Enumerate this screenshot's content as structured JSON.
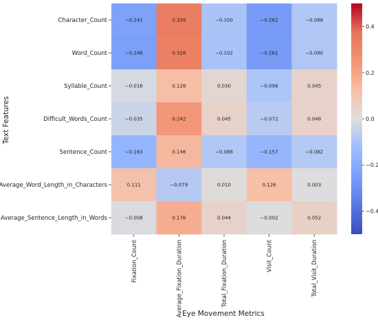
{
  "chart_data": {
    "type": "heatmap",
    "xlabel": "Eye Movement Metrics",
    "ylabel": "Text Features",
    "columns": [
      "Fixation_Count",
      "Average_Fixation_Duration",
      "Total_Fixation_Duration",
      "Visit_Count",
      "Total_Visit_Duration"
    ],
    "rows": [
      "Character_Count",
      "Word_Count",
      "Syllable_Count",
      "Difficult_Words_Count",
      "Sentence_Count",
      "Average_Word_Length_in_Characters",
      "Average_Sentence_Length_in_Words"
    ],
    "values": [
      [
        -0.241,
        0.339,
        -0.1,
        -0.262,
        -0.088
      ],
      [
        -0.246,
        0.328,
        -0.102,
        -0.261,
        -0.09
      ],
      [
        -0.016,
        0.128,
        0.03,
        -0.098,
        0.045
      ],
      [
        -0.035,
        0.242,
        0.045,
        -0.072,
        0.048
      ],
      [
        -0.163,
        0.146,
        -0.088,
        -0.157,
        -0.082
      ],
      [
        0.111,
        -0.079,
        0.01,
        0.126,
        0.003
      ],
      [
        -0.008,
        0.176,
        0.044,
        -0.002,
        0.052
      ]
    ],
    "cell_labels": [
      [
        "−0.241",
        "0.339",
        "−0.100",
        "−0.262",
        "−0.088"
      ],
      [
        "−0.246",
        "0.328",
        "−0.102",
        "−0.261",
        "−0.090"
      ],
      [
        "−0.016",
        "0.128",
        "0.030",
        "−0.098",
        "0.045"
      ],
      [
        "−0.035",
        "0.242",
        "0.045",
        "−0.072",
        "0.048"
      ],
      [
        "−0.163",
        "0.146",
        "−0.088",
        "−0.157",
        "−0.082"
      ],
      [
        "0.111",
        "−0.079",
        "0.010",
        "0.126",
        "0.003"
      ],
      [
        "−0.008",
        "0.176",
        "0.044",
        "−0.002",
        "0.052"
      ]
    ],
    "colormap": "coolwarm",
    "vmin": -0.5,
    "vmax": 0.5,
    "colorbar_ticks": [
      0.4,
      0.2,
      0.0,
      -0.2,
      -0.4
    ],
    "colorbar_tick_labels": [
      "0.4",
      "0.2",
      "0.0",
      "−0.2",
      "−0.4"
    ]
  }
}
